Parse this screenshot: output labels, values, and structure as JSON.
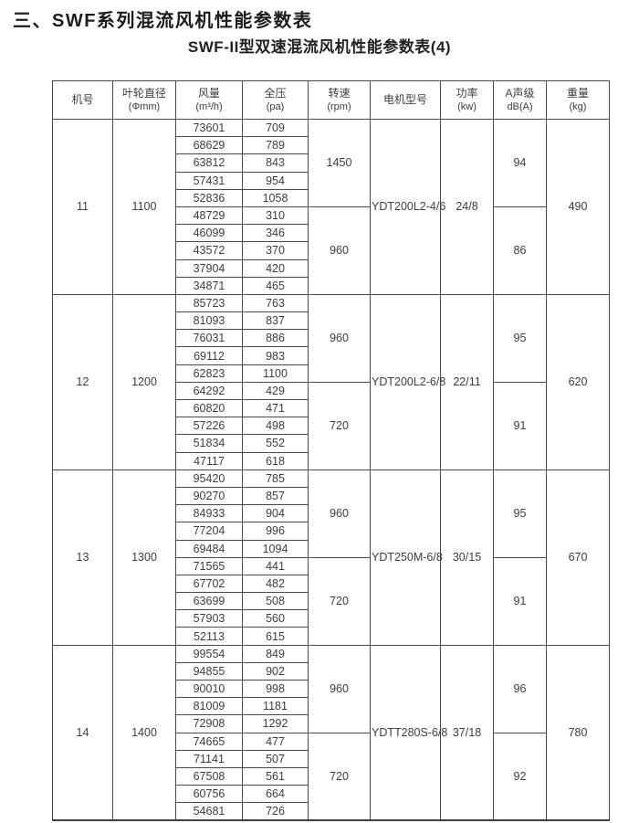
{
  "page": {
    "title": "三、SWF系列混流风机性能参数表",
    "subtitle": "SWF-II型双速混流风机性能参数表(4)"
  },
  "colors": {
    "text": "#3d3d3d",
    "border": "#4a4a4a",
    "background": "#ffffff"
  },
  "table": {
    "headers": [
      {
        "key": "machine-no",
        "line1": "机号",
        "line2": ""
      },
      {
        "key": "impeller-diameter",
        "line1": "叶轮直径",
        "line2": "(Φmm)"
      },
      {
        "key": "air-volume",
        "line1": "风量",
        "line2": "(m³/h)"
      },
      {
        "key": "total-pressure",
        "line1": "全压",
        "line2": "(pa)"
      },
      {
        "key": "speed",
        "line1": "转速",
        "line2": "(rpm)"
      },
      {
        "key": "motor-model",
        "line1": "电机型号",
        "line2": ""
      },
      {
        "key": "power",
        "line1": "功率",
        "line2": "(kw)"
      },
      {
        "key": "sound-level",
        "line1": "A声级",
        "line2": "dB(A)"
      },
      {
        "key": "weight",
        "line1": "重量",
        "line2": "(kg)"
      }
    ],
    "sections": [
      {
        "machine_no": "11",
        "impeller_diameter": "1100",
        "motor_model": "YDT200L2-4/6",
        "power": "24/8",
        "weight": "490",
        "speed_groups": [
          {
            "speed": "1450",
            "sound_level": "94",
            "rows": [
              [
                73601,
                709
              ],
              [
                68629,
                789
              ],
              [
                63812,
                843
              ],
              [
                57431,
                954
              ],
              [
                52836,
                1058
              ]
            ]
          },
          {
            "speed": "960",
            "sound_level": "86",
            "rows": [
              [
                48729,
                310
              ],
              [
                46099,
                346
              ],
              [
                43572,
                370
              ],
              [
                37904,
                420
              ],
              [
                34871,
                465
              ]
            ]
          }
        ]
      },
      {
        "machine_no": "12",
        "impeller_diameter": "1200",
        "motor_model": "YDT200L2-6/8",
        "power": "22/11",
        "weight": "620",
        "speed_groups": [
          {
            "speed": "960",
            "sound_level": "95",
            "rows": [
              [
                85723,
                763
              ],
              [
                81093,
                837
              ],
              [
                76031,
                886
              ],
              [
                69112,
                983
              ],
              [
                62823,
                1100
              ]
            ]
          },
          {
            "speed": "720",
            "sound_level": "91",
            "rows": [
              [
                64292,
                429
              ],
              [
                60820,
                471
              ],
              [
                57226,
                498
              ],
              [
                51834,
                552
              ],
              [
                47117,
                618
              ]
            ]
          }
        ]
      },
      {
        "machine_no": "13",
        "impeller_diameter": "1300",
        "motor_model": "YDT250M-6/8",
        "power": "30/15",
        "weight": "670",
        "speed_groups": [
          {
            "speed": "960",
            "sound_level": "95",
            "rows": [
              [
                95420,
                785
              ],
              [
                90270,
                857
              ],
              [
                84933,
                904
              ],
              [
                77204,
                996
              ],
              [
                69484,
                1094
              ]
            ]
          },
          {
            "speed": "720",
            "sound_level": "91",
            "rows": [
              [
                71565,
                441
              ],
              [
                67702,
                482
              ],
              [
                63699,
                508
              ],
              [
                57903,
                560
              ],
              [
                52113,
                615
              ]
            ]
          }
        ]
      },
      {
        "machine_no": "14",
        "impeller_diameter": "1400",
        "motor_model": "YDTT280S-6/8",
        "power": "37/18",
        "weight": "780",
        "speed_groups": [
          {
            "speed": "960",
            "sound_level": "96",
            "rows": [
              [
                99554,
                849
              ],
              [
                94855,
                902
              ],
              [
                90010,
                998
              ],
              [
                81009,
                1181
              ],
              [
                72908,
                1292
              ]
            ]
          },
          {
            "speed": "720",
            "sound_level": "92",
            "rows": [
              [
                74665,
                477
              ],
              [
                71141,
                507
              ],
              [
                67508,
                561
              ],
              [
                60756,
                664
              ],
              [
                54681,
                726
              ]
            ]
          }
        ]
      }
    ]
  }
}
